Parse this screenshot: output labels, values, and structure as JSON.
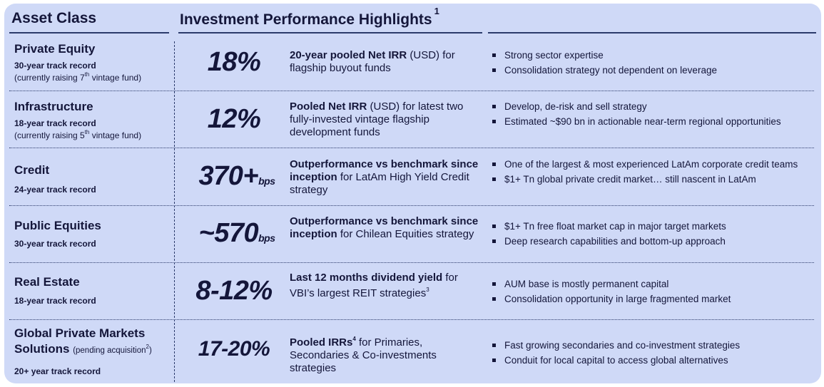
{
  "header": {
    "asset_class": "Asset Class",
    "highlights": "Investment Performance Highlights",
    "highlights_note": "1"
  },
  "rows": [
    {
      "name": "Private Equity",
      "track": "30-year track record",
      "paren_pre": "(currently raising 7",
      "paren_sup": "th",
      "paren_post": " vintage fund)",
      "metric": "18%",
      "metric_unit": "",
      "desc_bold": "20-year pooled Net IRR",
      "desc_rest": " (USD) for flagship buyout funds",
      "bullets": [
        "Strong sector expertise",
        "Consolidation strategy not dependent on leverage"
      ]
    },
    {
      "name": "Infrastructure",
      "track": "18-year track record",
      "paren_pre": "(currently raising 5",
      "paren_sup": "th",
      "paren_post": " vintage fund)",
      "metric": "12%",
      "metric_unit": "",
      "desc_bold": "Pooled Net IRR",
      "desc_rest": " (USD) for latest two fully-invested vintage flagship development funds",
      "bullets": [
        "Develop, de-risk and sell strategy",
        "Estimated ~$90 bn in actionable near-term regional opportunities"
      ]
    },
    {
      "name": "Credit",
      "track": "24-year track record",
      "metric": "370+",
      "metric_unit": "bps",
      "desc_bold": "Outperformance vs benchmark since inception",
      "desc_rest": " for LatAm High Yield Credit strategy",
      "bullets": [
        "One of the largest & most experienced LatAm corporate credit teams",
        "$1+ Tn global private credit market… still nascent in LatAm"
      ]
    },
    {
      "name": "Public Equities",
      "track": "30-year track record",
      "metric": "~570",
      "metric_unit": "bps",
      "desc_bold": "Outperformance vs benchmark since inception",
      "desc_rest": " for Chilean Equities strategy",
      "bullets": [
        "$1+ Tn free float market cap in major target markets",
        "Deep research capabilities and bottom-up approach"
      ]
    },
    {
      "name": "Real Estate",
      "track": "18-year track record",
      "metric": "8-12%",
      "metric_unit": "",
      "desc_bold": "Last 12 months dividend yield",
      "desc_rest": " for VBI’s largest REIT strategies",
      "desc_sup": "3",
      "bullets": [
        "AUM base is mostly permanent capital",
        "Consolidation opportunity in large fragmented market"
      ]
    },
    {
      "name": "Global Private Markets Solutions",
      "name_sub": "(pending acquisition",
      "name_sub_sup": "2",
      "name_sub_post": ")",
      "track": "20+ year track record",
      "metric": "17-20%",
      "metric_unit": "",
      "desc_bold": "Pooled IRRs",
      "desc_bold_sup": "4",
      "desc_rest": " for Primaries, Secondaries & Co-investments strategies",
      "bullets": [
        "Fast growing secondaries and co-investment strategies",
        "Conduit for local capital to access global alternatives"
      ]
    }
  ]
}
